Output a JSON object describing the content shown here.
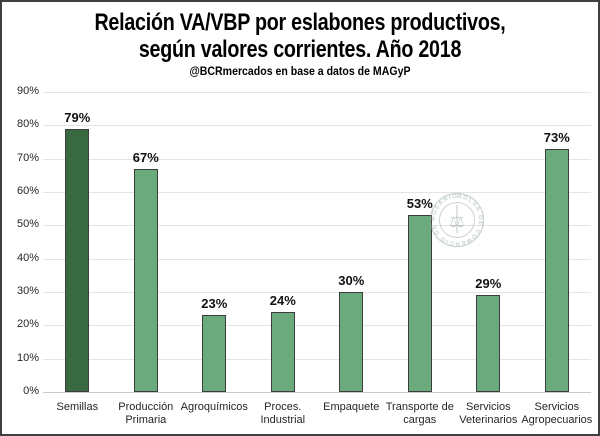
{
  "frame": {
    "border_color": "#3f3f3f",
    "background": "#ffffff"
  },
  "title": {
    "line1": "Relación VA/VBP por eslabones productivos,",
    "line2": "según valores corrientes. Año 2018"
  },
  "subtitle": "@BCRmercados en base a datos de MAGyP",
  "watermark": {
    "seal_text": "BOLSA DE COMERCIO DE ROSARIO · ",
    "color": "#93a89a"
  },
  "chart_data": {
    "type": "bar",
    "title": "Relación VA/VBP por eslabones productivos, según valores corrientes. Año 2018",
    "subtitle": "@BCRmercados en base a datos de MAGyP",
    "categories": [
      "Semillas",
      "Producción Primaria",
      "Agroquímicos",
      "Proces. Industrial",
      "Empaquete",
      "Transporte de cargas",
      "Servicios Veterinarios",
      "Servicios Agropecuarios"
    ],
    "values": [
      79,
      67,
      23,
      24,
      30,
      53,
      29,
      73
    ],
    "data_labels": [
      "79%",
      "67%",
      "23%",
      "24%",
      "30%",
      "53%",
      "29%",
      "73%"
    ],
    "xlabel": "",
    "ylabel": "",
    "ylim": [
      0,
      90
    ],
    "ytick_step": 10,
    "ytick_labels": [
      "0%",
      "10%",
      "20%",
      "30%",
      "40%",
      "50%",
      "60%",
      "70%",
      "80%",
      "90%"
    ],
    "grid": "horizontal",
    "legend": "none",
    "colors": {
      "bar_default": "#6BAA7C",
      "bar_highlight": "#386941",
      "highlight_index": 0,
      "bar_border": "#3C3C3C",
      "gridline": "#E4E4E4",
      "axis_line": "#C9C9C9",
      "tick_text": "#262626",
      "value_text": "#111111"
    }
  }
}
